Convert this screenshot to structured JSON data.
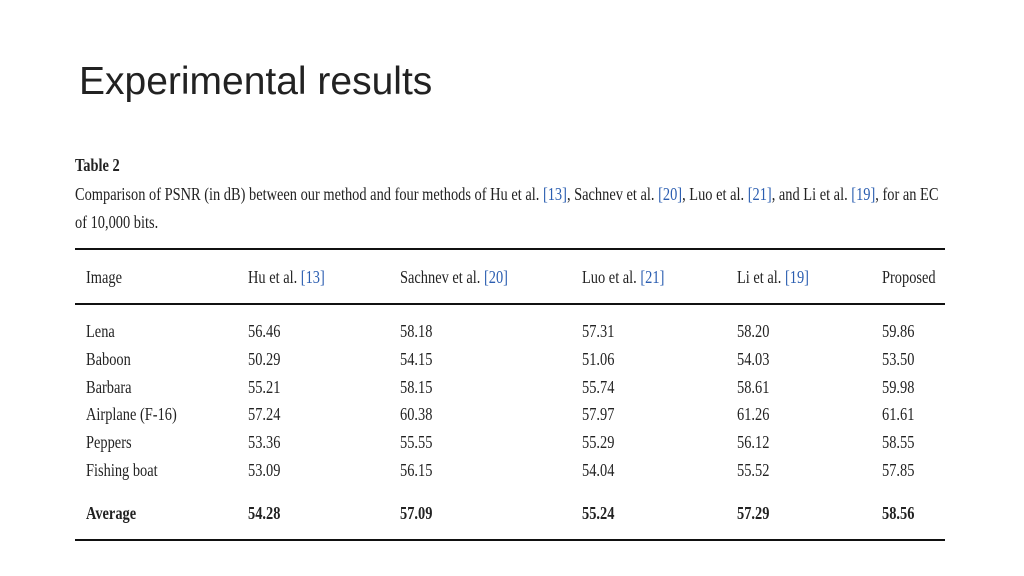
{
  "slide_title": "Experimental results",
  "table_label": "Table 2",
  "caption": [
    "Comparison of PSNR (in dB) between our method and four methods of Hu et al. ",
    "[13]",
    ", Sachnev et al. ",
    "[20]",
    ", Luo et al. ",
    "[21]",
    ", and Li et al. ",
    "[19]",
    ", for an EC of 10,000 bits."
  ],
  "table": {
    "header": [
      {
        "text": "Image"
      },
      {
        "text": "Hu et al. ",
        "ref": "[13]"
      },
      {
        "text": "Sachnev et al. ",
        "ref": "[20]"
      },
      {
        "text": "Luo et al. ",
        "ref": "[21]"
      },
      {
        "text": "Li et al. ",
        "ref": "[19]"
      },
      {
        "text": "Proposed"
      }
    ],
    "rows": [
      [
        "Lena",
        "56.46",
        "58.18",
        "57.31",
        "58.20",
        "59.86"
      ],
      [
        "Baboon",
        "50.29",
        "54.15",
        "51.06",
        "54.03",
        "53.50"
      ],
      [
        "Barbara",
        "55.21",
        "58.15",
        "55.74",
        "58.61",
        "59.98"
      ],
      [
        "Airplane (F-16)",
        "57.24",
        "60.38",
        "57.97",
        "61.26",
        "61.61"
      ],
      [
        "Peppers",
        "53.36",
        "55.55",
        "55.29",
        "56.12",
        "58.55"
      ],
      [
        "Fishing boat",
        "53.09",
        "56.15",
        "54.04",
        "55.52",
        "57.85"
      ]
    ],
    "footer": [
      "Average",
      "54.28",
      "57.09",
      "55.24",
      "57.29",
      "58.56"
    ]
  }
}
